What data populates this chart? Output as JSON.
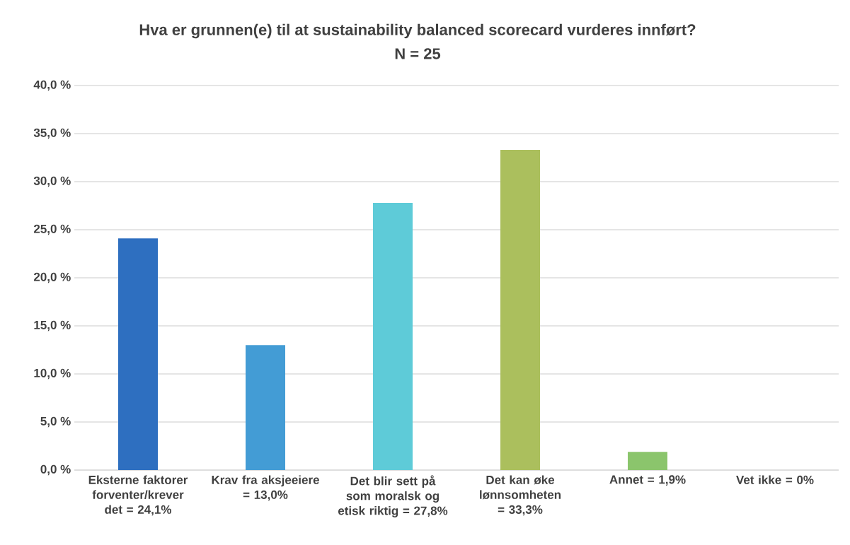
{
  "chart_data": {
    "type": "bar",
    "title": "Hva er grunnen(e) til at sustainability balanced scorecard vurderes innført?",
    "subtitle": "N = 25",
    "categories": [
      "Eksterne faktorer forventer/krever det = 24,1%",
      "Krav fra aksjeeiere = 13,0%",
      "Det blir sett på som moralsk og etisk riktig = 27,8%",
      "Det kan øke lønnsomheten = 33,3%",
      "Annet = 1,9%",
      "Vet ikke = 0%"
    ],
    "values": [
      24.1,
      13.0,
      27.8,
      33.3,
      1.9,
      0
    ],
    "colors": [
      "#2e6fc0",
      "#439cd5",
      "#5ecbd8",
      "#abbf5d",
      "#8bc56c",
      "#6fb05a"
    ],
    "ylim": [
      0,
      40
    ],
    "yticks": [
      {
        "value": 0,
        "label": "0,0 %"
      },
      {
        "value": 5,
        "label": "5,0 %"
      },
      {
        "value": 10,
        "label": "10,0 %"
      },
      {
        "value": 15,
        "label": "15,0 %"
      },
      {
        "value": 20,
        "label": "20,0 %"
      },
      {
        "value": 25,
        "label": "25,0 %"
      },
      {
        "value": 30,
        "label": "30,0 %"
      },
      {
        "value": 35,
        "label": "35,0 %"
      },
      {
        "value": 40,
        "label": "40,0 %"
      }
    ],
    "grid": "y"
  }
}
